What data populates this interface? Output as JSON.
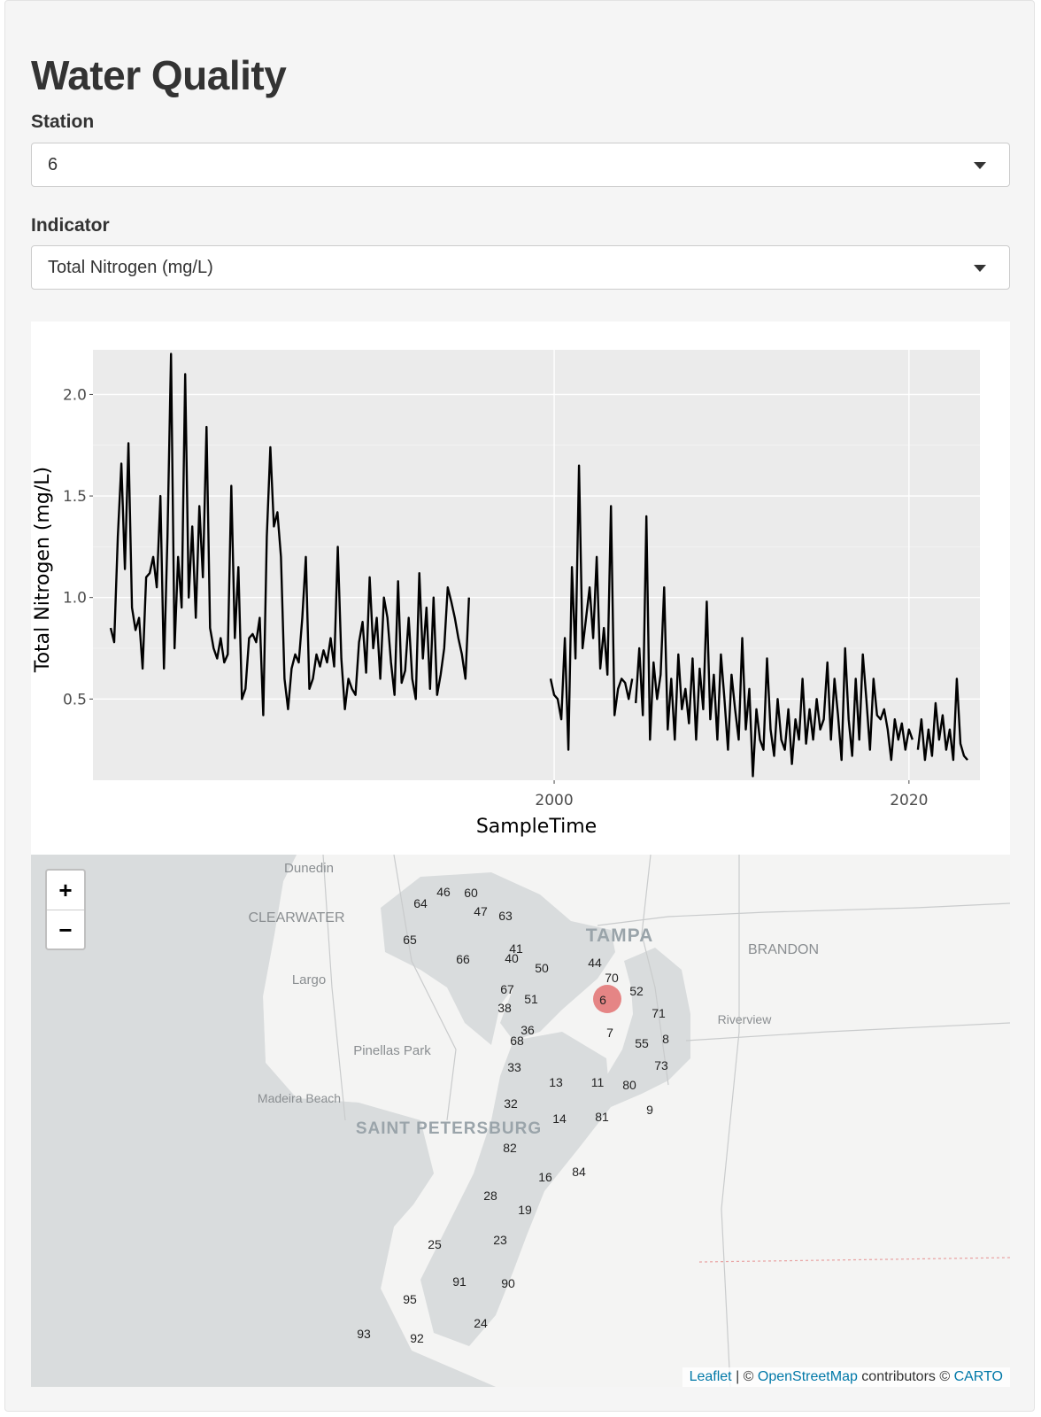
{
  "page": {
    "title": "Water Quality"
  },
  "station": {
    "label": "Station",
    "value": "6"
  },
  "indicator": {
    "label": "Indicator",
    "value": "Total Nitrogen (mg/L)"
  },
  "chart_data": {
    "type": "line",
    "xlabel": "SampleTime",
    "ylabel": "Total Nitrogen (mg/L)",
    "xlim": [
      1974,
      2024
    ],
    "ylim": [
      0.1,
      2.22
    ],
    "xticks": [
      2000,
      2020
    ],
    "yticks": [
      0.5,
      1.0,
      1.5,
      2.0
    ],
    "ytick_labels": [
      "0.5",
      "1.0",
      "1.5",
      "2.0"
    ],
    "grid": true,
    "legend": "none",
    "series": [
      {
        "segment": 1,
        "x": [
          1975.0,
          1975.2,
          1975.4,
          1975.6,
          1975.8,
          1976.0,
          1976.2,
          1976.4,
          1976.6,
          1976.8,
          1977.0,
          1977.2,
          1977.4,
          1977.6,
          1977.8,
          1978.0,
          1978.2,
          1978.4,
          1978.6,
          1978.8,
          1979.0,
          1979.2,
          1979.4,
          1979.6,
          1979.8,
          1980.0,
          1980.2,
          1980.4,
          1980.6,
          1980.8,
          1981.0,
          1981.2,
          1981.4,
          1981.6,
          1981.8,
          1982.0,
          1982.2,
          1982.4,
          1982.6,
          1982.8,
          1983.0,
          1983.2,
          1983.4,
          1983.6,
          1983.8,
          1984.0,
          1984.2,
          1984.4,
          1984.6,
          1984.8,
          1985.0,
          1985.2,
          1985.4,
          1985.6,
          1985.8,
          1986.0,
          1986.2,
          1986.4,
          1986.6,
          1986.8,
          1987.0,
          1987.2,
          1987.4,
          1987.6,
          1987.8,
          1988.0,
          1988.2,
          1988.4,
          1988.6,
          1988.8,
          1989.0,
          1989.2,
          1989.4,
          1989.6,
          1989.8,
          1990.0,
          1990.2,
          1990.4,
          1990.6,
          1990.8,
          1991.0,
          1991.2,
          1991.4,
          1991.6,
          1991.8,
          1992.0,
          1992.2,
          1992.4,
          1992.6,
          1992.8,
          1993.0,
          1993.2,
          1993.4,
          1993.6,
          1993.8,
          1994.0,
          1994.2,
          1994.4,
          1994.6,
          1994.8,
          1995.0,
          1995.2
        ],
        "values": [
          0.85,
          0.78,
          1.3,
          1.66,
          1.14,
          1.76,
          0.95,
          0.84,
          0.9,
          0.65,
          1.1,
          1.12,
          1.2,
          1.05,
          1.5,
          0.65,
          1.3,
          2.2,
          0.75,
          1.2,
          0.95,
          2.1,
          1.0,
          1.35,
          0.9,
          1.45,
          1.1,
          1.84,
          0.85,
          0.75,
          0.7,
          0.8,
          0.68,
          0.72,
          1.55,
          0.8,
          1.15,
          0.5,
          0.55,
          0.8,
          0.82,
          0.78,
          0.9,
          0.42,
          1.3,
          1.74,
          1.35,
          1.42,
          1.2,
          0.6,
          0.45,
          0.65,
          0.72,
          0.68,
          0.9,
          1.2,
          0.55,
          0.6,
          0.72,
          0.66,
          0.74,
          0.68,
          0.8,
          0.66,
          1.25,
          0.7,
          0.45,
          0.6,
          0.55,
          0.52,
          0.78,
          0.88,
          0.63,
          1.1,
          0.75,
          0.9,
          0.6,
          1.0,
          0.9,
          0.68,
          0.52,
          1.08,
          0.58,
          0.64,
          0.9,
          0.6,
          0.5,
          1.12,
          0.7,
          0.95,
          0.55,
          1.0,
          0.52,
          0.62,
          0.75,
          1.05,
          0.98,
          0.9,
          0.8,
          0.72,
          0.6,
          1.0
        ]
      },
      {
        "segment": 2,
        "x": [
          1999.8,
          2000.0,
          2000.2,
          2000.4,
          2000.6,
          2000.8,
          2001.0,
          2001.2,
          2001.4,
          2001.6,
          2001.8,
          2002.0,
          2002.2,
          2002.4,
          2002.6,
          2002.8,
          2003.0,
          2003.2,
          2003.4,
          2003.6,
          2003.8,
          2004.0,
          2004.2,
          2004.4
        ],
        "values": [
          0.6,
          0.52,
          0.5,
          0.4,
          0.8,
          0.25,
          1.15,
          0.7,
          1.65,
          0.75,
          0.9,
          1.05,
          0.8,
          1.2,
          0.65,
          0.85,
          0.62,
          1.45,
          0.42,
          0.55,
          0.6,
          0.58,
          0.5,
          0.6
        ]
      },
      {
        "segment": 3,
        "x": [
          2004.6,
          2004.8,
          2005.0,
          2005.2,
          2005.4,
          2005.6,
          2005.8,
          2006.0,
          2006.2,
          2006.4,
          2006.6,
          2006.8,
          2007.0,
          2007.2,
          2007.4,
          2007.6,
          2007.8,
          2008.0,
          2008.2,
          2008.4,
          2008.6,
          2008.8,
          2009.0,
          2009.2,
          2009.4,
          2009.6,
          2009.8,
          2010.0,
          2010.2,
          2010.4,
          2010.6,
          2010.8,
          2011.0,
          2011.2,
          2011.4,
          2011.6,
          2011.8,
          2012.0,
          2012.2,
          2012.4,
          2012.6,
          2012.8,
          2013.0,
          2013.2,
          2013.4,
          2013.6,
          2013.8,
          2014.0,
          2014.2,
          2014.4,
          2014.6,
          2014.8,
          2015.0,
          2015.2,
          2015.4,
          2015.6,
          2015.8,
          2016.0,
          2016.2,
          2016.4,
          2016.6,
          2016.8,
          2017.0,
          2017.2,
          2017.4,
          2017.6,
          2017.8,
          2018.0,
          2018.2,
          2018.4,
          2018.6,
          2018.8,
          2019.0,
          2019.2,
          2019.4,
          2019.6,
          2019.8,
          2020.0,
          2020.2
        ],
        "values": [
          0.48,
          0.75,
          0.42,
          1.4,
          0.3,
          0.68,
          0.5,
          0.62,
          1.05,
          0.35,
          0.6,
          0.3,
          0.72,
          0.45,
          0.55,
          0.38,
          0.7,
          0.3,
          0.65,
          0.45,
          0.98,
          0.4,
          0.62,
          0.3,
          0.72,
          0.5,
          0.25,
          0.62,
          0.45,
          0.3,
          0.8,
          0.35,
          0.55,
          0.12,
          0.45,
          0.3,
          0.25,
          0.7,
          0.35,
          0.22,
          0.5,
          0.3,
          0.25,
          0.45,
          0.18,
          0.4,
          0.3,
          0.6,
          0.28,
          0.45,
          0.3,
          0.5,
          0.35,
          0.4,
          0.68,
          0.3,
          0.6,
          0.42,
          0.2,
          0.75,
          0.4,
          0.22,
          0.6,
          0.3,
          0.72,
          0.5,
          0.25,
          0.6,
          0.42,
          0.4,
          0.45,
          0.35,
          0.2,
          0.4,
          0.3,
          0.38,
          0.25,
          0.35,
          0.3
        ]
      },
      {
        "segment": 4,
        "x": [
          2020.5,
          2020.7,
          2020.9,
          2021.1,
          2021.3,
          2021.5,
          2021.7,
          2021.9,
          2022.1,
          2022.3,
          2022.5,
          2022.7,
          2022.9,
          2023.1,
          2023.3
        ],
        "values": [
          0.25,
          0.4,
          0.2,
          0.35,
          0.22,
          0.48,
          0.3,
          0.42,
          0.25,
          0.35,
          0.2,
          0.6,
          0.28,
          0.22,
          0.2
        ]
      }
    ]
  },
  "map": {
    "stations": [
      "64",
      "46",
      "60",
      "47",
      "63",
      "65",
      "41",
      "40",
      "66",
      "50",
      "44",
      "70",
      "67",
      "51",
      "38",
      "52",
      "6",
      "71",
      "36",
      "68",
      "7",
      "55",
      "8",
      "33",
      "73",
      "13",
      "11",
      "80",
      "32",
      "9",
      "14",
      "81",
      "82",
      "16",
      "84",
      "28",
      "19",
      "23",
      "25",
      "91",
      "90",
      "95",
      "24",
      "93",
      "92"
    ],
    "selected": "6",
    "selected_color": "#e06060",
    "places": [
      "Dunedin",
      "CLEARWATER",
      "TAMPA",
      "BRANDON",
      "Largo",
      "Riverview",
      "Pinellas Park",
      "Madeira Beach",
      "SAINT PETERSBURG"
    ],
    "zoom_in": "+",
    "zoom_out": "−",
    "attrib": {
      "leaflet": "Leaflet",
      "sep1": " | © ",
      "osm": "OpenStreetMap",
      "mid": " contributors © ",
      "carto": "CARTO"
    }
  }
}
